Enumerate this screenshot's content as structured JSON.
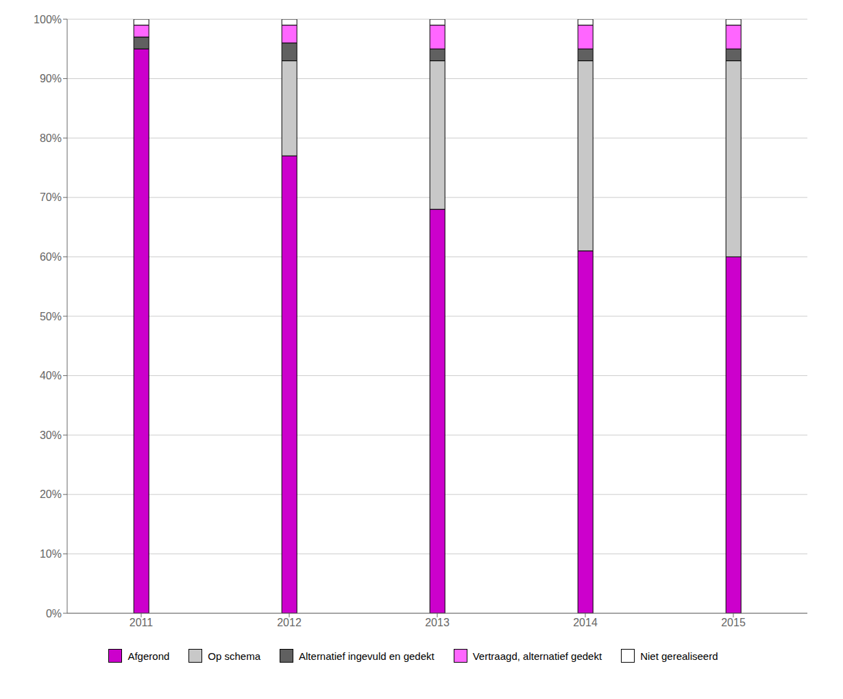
{
  "chart_data": {
    "type": "bar",
    "stacked": true,
    "grid": true,
    "legend": "bottom",
    "categories": [
      "2011",
      "2012",
      "2013",
      "2014",
      "2015"
    ],
    "series": [
      {
        "name": "Afgerond",
        "color": "#CC00CC",
        "values": [
          95,
          77,
          68,
          61,
          60
        ]
      },
      {
        "name": "Op schema",
        "color": "#C8C8C8",
        "values": [
          0,
          16,
          25,
          32,
          33
        ]
      },
      {
        "name": "Alternatief ingevuld en gedekt",
        "color": "#606060",
        "values": [
          2,
          3,
          2,
          2,
          2
        ]
      },
      {
        "name": "Vertraagd, alternatief gedekt",
        "color": "#FF66FF",
        "values": [
          2,
          3,
          4,
          4,
          4
        ]
      },
      {
        "name": "Niet gerealiseerd",
        "color": "#FFFFFF",
        "values": [
          1,
          1,
          1,
          1,
          1
        ]
      }
    ],
    "ylim": [
      0,
      100
    ],
    "yticks": [
      {
        "value": 0,
        "label": "0%"
      },
      {
        "value": 10,
        "label": "10%"
      },
      {
        "value": 20,
        "label": "20%"
      },
      {
        "value": 30,
        "label": "30%"
      },
      {
        "value": 40,
        "label": "40%"
      },
      {
        "value": 50,
        "label": "50%"
      },
      {
        "value": 60,
        "label": "60%"
      },
      {
        "value": 70,
        "label": "70%"
      },
      {
        "value": 80,
        "label": "80%"
      },
      {
        "value": 90,
        "label": "90%"
      },
      {
        "value": 100,
        "label": "100%"
      }
    ]
  }
}
